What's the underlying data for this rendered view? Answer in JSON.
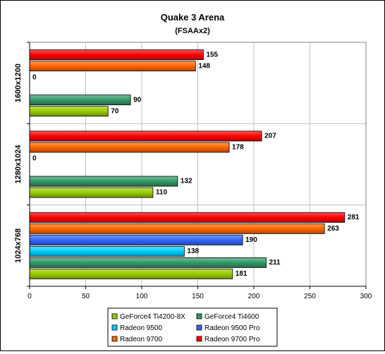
{
  "chart_data": {
    "type": "bar",
    "orientation": "horizontal",
    "title": "Quake 3 Arena",
    "subtitle": "(FSAAx2)",
    "xlabel": "",
    "ylabel": "",
    "xlim": [
      0,
      300
    ],
    "xticks": [
      0,
      50,
      100,
      150,
      200,
      250,
      300
    ],
    "grid": "vertical",
    "categories": [
      "1600x1200",
      "1280x1024",
      "1024x768"
    ],
    "series": [
      {
        "name": "GeForce4 Ti4200-8X",
        "color": "#99cc00",
        "values": [
          70,
          110,
          181
        ]
      },
      {
        "name": "GeForce4 Ti4600",
        "color": "#339966",
        "values": [
          90,
          132,
          211
        ]
      },
      {
        "name": "Radeon 9500",
        "color": "#00ccff",
        "values": [
          null,
          null,
          138
        ]
      },
      {
        "name": "Radeon 9500 Pro",
        "color": "#3366ff",
        "values": [
          0,
          0,
          190
        ]
      },
      {
        "name": "Radeon 9700",
        "color": "#ff6600",
        "values": [
          148,
          178,
          263
        ]
      },
      {
        "name": "Radeon 9700 Pro",
        "color": "#ff0000",
        "values": [
          155,
          207,
          281
        ]
      }
    ],
    "legend": {
      "position": "bottom",
      "rows": [
        [
          "GeForce4 Ti4200-8X",
          "GeForce4 Ti4600"
        ],
        [
          "Radeon 9500",
          "Radeon 9500 Pro"
        ],
        [
          "Radeon 9700",
          "Radeon 9700 Pro"
        ]
      ]
    }
  }
}
